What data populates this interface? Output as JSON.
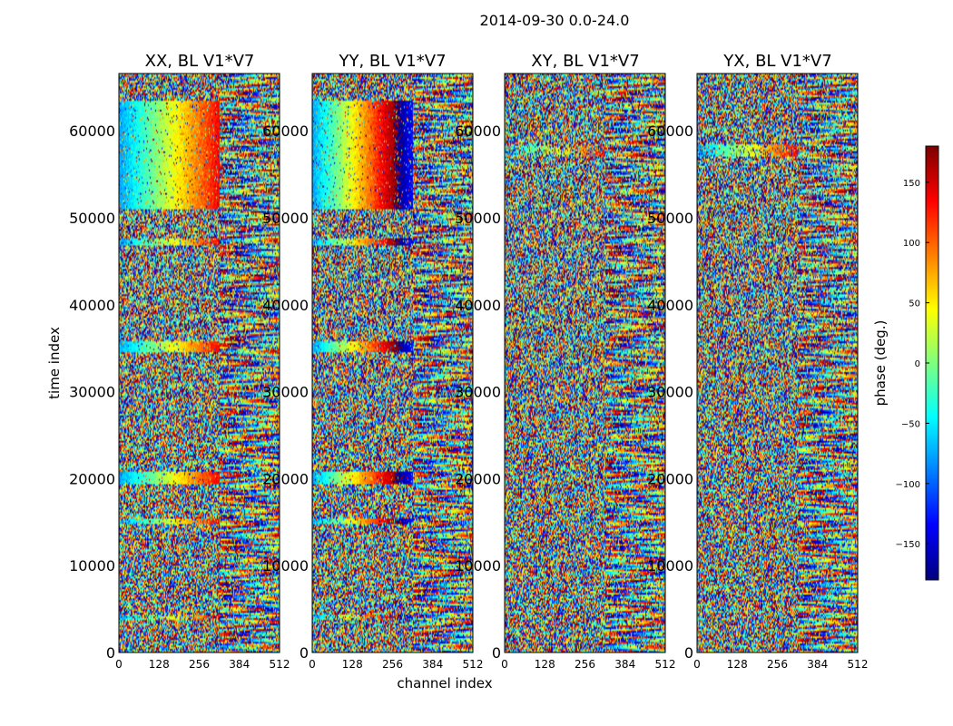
{
  "figure_title": "2014-09-30 0.0-24.0",
  "chart_data": {
    "type": "heatmap",
    "title": "2014-09-30 0.0-24.0",
    "xlabel": "channel index",
    "ylabel": "time index",
    "xlim": [
      0,
      512
    ],
    "ylim": [
      0,
      66600
    ],
    "xticks": [
      0,
      128,
      256,
      384,
      512
    ],
    "xtick_labels": [
      "0",
      "128",
      "256",
      "384",
      "512"
    ],
    "yticks": [
      0,
      10000,
      20000,
      30000,
      40000,
      50000,
      60000
    ],
    "ytick_labels": [
      "0",
      "10000",
      "20000",
      "30000",
      "40000",
      "50000",
      "60000"
    ],
    "panels": [
      {
        "title": "XX, BL V1*V7",
        "pol": "XX"
      },
      {
        "title": "YY, BL V1*V7",
        "pol": "YY"
      },
      {
        "title": "XY, BL V1*V7",
        "pol": "XY"
      },
      {
        "title": "YX, BL V1*V7",
        "pol": "YX"
      }
    ],
    "colorbar": {
      "label": "phase (deg.)",
      "range": [
        -180,
        180
      ],
      "ticks": [
        -150,
        -100,
        -50,
        0,
        50,
        100,
        150
      ],
      "tick_labels": [
        "−150",
        "−100",
        "−50",
        "0",
        "50",
        "100",
        "150"
      ],
      "colormap": "jet"
    },
    "coherent_bands": [
      {
        "panels": [
          "XX",
          "YY"
        ],
        "t0": 51000,
        "t1": 63500,
        "ch0": 0,
        "ch1": 320,
        "kind": "gradient",
        "strength": 1.0
      },
      {
        "panels": [
          "XX",
          "YY"
        ],
        "t0": 34500,
        "t1": 35800,
        "ch0": 0,
        "ch1": 320,
        "kind": "gradient",
        "strength": 1.0
      },
      {
        "panels": [
          "XX",
          "YY"
        ],
        "t0": 46800,
        "t1": 47600,
        "ch0": 0,
        "ch1": 320,
        "kind": "gradient",
        "strength": 0.8
      },
      {
        "panels": [
          "XX",
          "YY"
        ],
        "t0": 19300,
        "t1": 20800,
        "ch0": 0,
        "ch1": 320,
        "kind": "gradient",
        "strength": 1.0
      },
      {
        "panels": [
          "XX",
          "YY"
        ],
        "t0": 14700,
        "t1": 15400,
        "ch0": 0,
        "ch1": 320,
        "kind": "gradient",
        "strength": 0.8
      },
      {
        "panels": [
          "XX",
          "YY"
        ],
        "t0": 3800,
        "t1": 4300,
        "ch0": 0,
        "ch1": 320,
        "kind": "gradient",
        "strength": 0.5
      },
      {
        "panels": [
          "XY"
        ],
        "t0": 57000,
        "t1": 58300,
        "ch0": 0,
        "ch1": 320,
        "kind": "gradient",
        "strength": 0.5
      },
      {
        "panels": [
          "YX"
        ],
        "t0": 57000,
        "t1": 58500,
        "ch0": 0,
        "ch1": 320,
        "kind": "gradient",
        "strength": 0.8
      }
    ],
    "fringe_regions": [
      {
        "panels": [
          "XX",
          "YY",
          "XY",
          "YX"
        ],
        "ch0": 320,
        "ch1": 512,
        "t0": 0,
        "t1": 66600
      }
    ]
  }
}
